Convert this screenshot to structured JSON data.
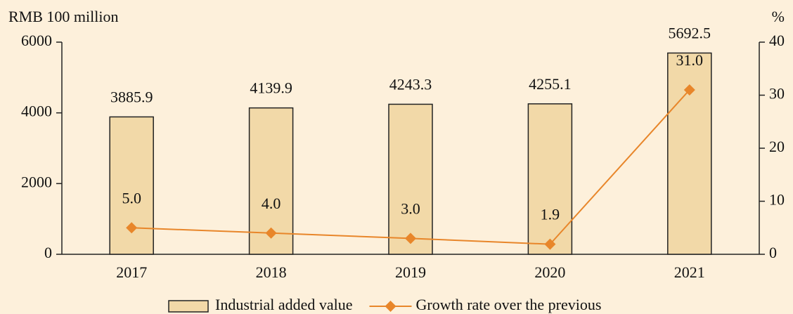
{
  "chart_data": {
    "type": "bar",
    "y_label": "RMB 100 million",
    "y2_label": "%",
    "categories": [
      "2017",
      "2018",
      "2019",
      "2020",
      "2021"
    ],
    "series": [
      {
        "name": "Industrial added value",
        "type": "bar",
        "color": "#f2d9a8",
        "values": [
          3885.9,
          4139.9,
          4243.3,
          4255.1,
          5692.5
        ]
      },
      {
        "name": "Growth rate over the previous",
        "type": "line",
        "axis": "y2",
        "color": "#e8862a",
        "values": [
          5.0,
          4.0,
          3.0,
          1.9,
          31.0
        ],
        "value_labels": [
          "5.0",
          "4.0",
          "3.0",
          "1.9",
          "31.0"
        ]
      }
    ],
    "ylim": [
      0,
      6000
    ],
    "yticks": [
      0,
      2000,
      4000,
      6000
    ],
    "y2lim": [
      0,
      40
    ],
    "y2ticks": [
      0,
      10,
      20,
      30,
      40
    ],
    "grid": false
  }
}
